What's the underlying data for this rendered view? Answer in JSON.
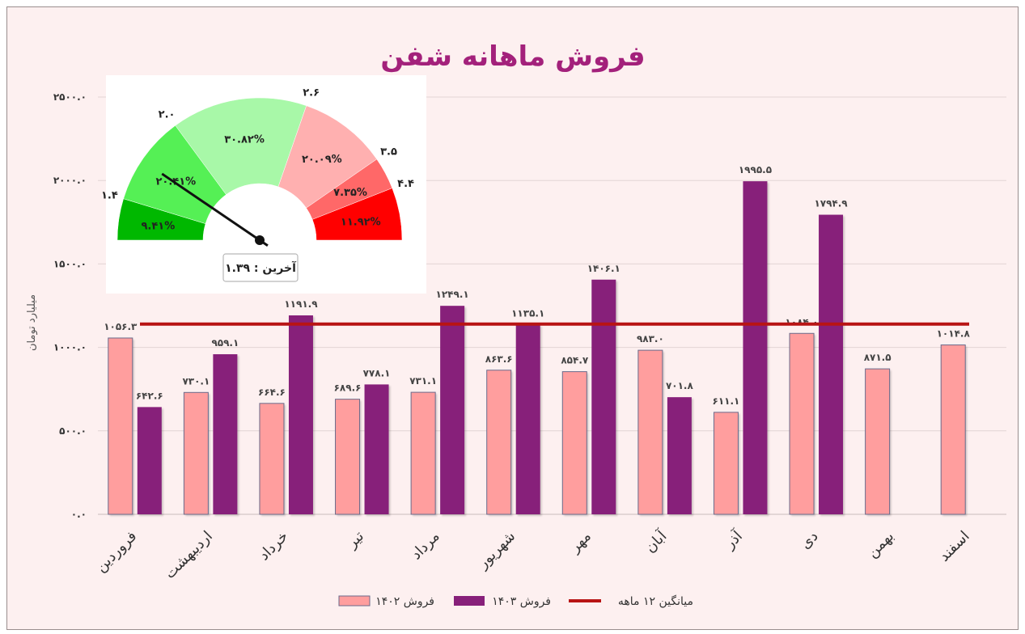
{
  "chart_data": {
    "type": "bar",
    "title": "فروش ماهانه شفن",
    "ylabel": "میلیارد تومان",
    "ylim": [
      0,
      2500
    ],
    "yticks": [
      "۰.۰",
      "۵۰۰.۰",
      "۱۰۰۰.۰",
      "۱۵۰۰.۰",
      "۲۰۰۰.۰",
      "۲۵۰۰.۰"
    ],
    "categories": [
      "فروردین",
      "اردیبهشت",
      "خرداد",
      "تیر",
      "مرداد",
      "شهریور",
      "مهر",
      "آبان",
      "آذر",
      "دی",
      "بهمن",
      "اسفند"
    ],
    "series": [
      {
        "name": "فروش ۱۴۰۲",
        "color": "#ff9e9e",
        "values": [
          1056.3,
          730.1,
          664.6,
          689.6,
          731.1,
          863.6,
          854.7,
          983.0,
          611.1,
          1084.0,
          871.5,
          1014.8
        ],
        "labels": [
          "۱۰۵۶.۳",
          "۷۳۰.۱",
          "۶۶۴.۶",
          "۶۸۹.۶",
          "۷۳۱.۱",
          "۸۶۳.۶",
          "۸۵۴.۷",
          "۹۸۳.۰",
          "۶۱۱.۱",
          "۱۰۸۴.۰",
          "۸۷۱.۵",
          "۱۰۱۴.۸"
        ]
      },
      {
        "name": "فروش ۱۴۰۳",
        "color": "#87207a",
        "values": [
          642.6,
          959.1,
          1191.9,
          778.1,
          1249.1,
          1135.1,
          1406.1,
          701.8,
          1995.5,
          1794.9,
          null,
          null
        ],
        "labels": [
          "۶۴۲.۶",
          "۹۵۹.۱",
          "۱۱۹۱.۹",
          "۷۷۸.۱",
          "۱۲۴۹.۱",
          "۱۱۳۵.۱",
          "۱۴۰۶.۱",
          "۷۰۱.۸",
          "۱۹۹۵.۵",
          "۱۷۹۴.۹",
          "",
          ""
        ]
      }
    ],
    "average_line": {
      "name": "میانگین ۱۲ ماهه",
      "value": 1140,
      "color": "#b81414"
    },
    "legend_position": "bottom",
    "grid": true
  },
  "gauge": {
    "boundaries": [
      "۱.۴",
      "۲.۰",
      "۲.۶",
      "۳.۵",
      "۴.۴"
    ],
    "segments": [
      {
        "pct": "۹.۴۱%",
        "color": "#00b800",
        "share": 9.41
      },
      {
        "pct": "۲۰.۴۱%",
        "color": "#55f055",
        "share": 20.41
      },
      {
        "pct": "۳۰.۸۲%",
        "color": "#a8f8a8",
        "share": 30.82
      },
      {
        "pct": "۲۰.۰۹%",
        "color": "#ffb0b0",
        "share": 20.09
      },
      {
        "pct": "۷.۳۵%",
        "color": "#ff6868",
        "share": 7.35
      },
      {
        "pct": "۱۱.۹۲%",
        "color": "#ff0000",
        "share": 11.92
      }
    ],
    "needle_fraction": 0.19,
    "last_label": "آخرین : ۱.۳۹"
  }
}
